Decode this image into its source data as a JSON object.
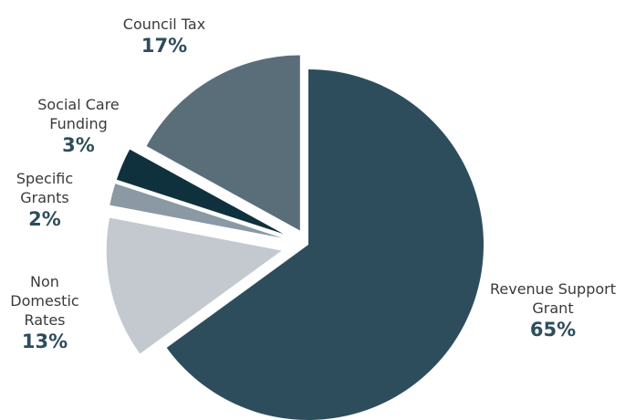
{
  "chart_data": {
    "type": "pie",
    "title": "",
    "exploded": true,
    "slices": [
      {
        "name": "Revenue Support Grant",
        "value": 65,
        "label": "65%",
        "color": "#2d4d5c"
      },
      {
        "name": "Non Domestic Rates",
        "value": 13,
        "label": "13%",
        "color": "#c3c9cf"
      },
      {
        "name": "Specific Grants",
        "value": 2,
        "label": "2%",
        "color": "#8a99a3"
      },
      {
        "name": "Social Care Funding",
        "value": 3,
        "label": "3%",
        "color": "#0f313d"
      },
      {
        "name": "Council Tax",
        "value": 17,
        "label": "17%",
        "color": "#5a6e7a"
      }
    ]
  }
}
